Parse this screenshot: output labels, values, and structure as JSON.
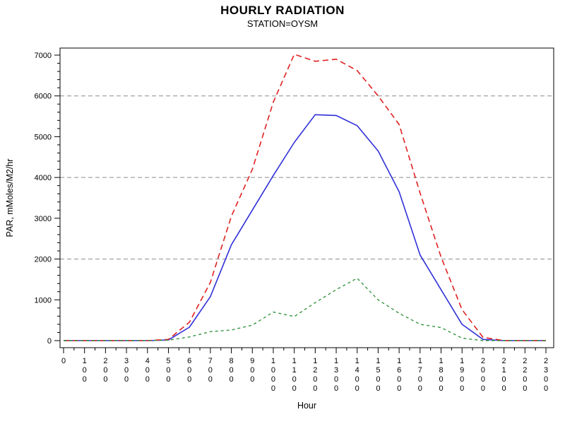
{
  "header": {
    "title": "HOURLY RADIATION",
    "subtitle": "STATION=OYSM"
  },
  "chart_data": {
    "type": "line",
    "title": "HOURLY RADIATION",
    "subtitle": "STATION=OYSM",
    "xlabel": "Hour",
    "ylabel": "PAR, mMoles/M2/hr",
    "x": [
      0,
      100,
      200,
      300,
      400,
      500,
      600,
      700,
      800,
      900,
      1000,
      1100,
      1200,
      1300,
      1400,
      1500,
      1600,
      1700,
      1800,
      1900,
      2000,
      2100,
      2200,
      2300
    ],
    "series": [
      {
        "id": "red-dashed-series",
        "color": "#e02020",
        "dash": "8 5",
        "width": 1.6,
        "values": [
          0,
          0,
          0,
          0,
          0,
          30,
          450,
          1430,
          3050,
          4200,
          5850,
          7020,
          6850,
          6900,
          6620,
          6000,
          5300,
          3620,
          2050,
          760,
          80,
          0,
          0,
          0
        ]
      },
      {
        "id": "blue-solid-series",
        "color": "#3030d8",
        "dash": "",
        "width": 1.6,
        "values": [
          0,
          0,
          0,
          0,
          0,
          15,
          330,
          1080,
          2350,
          3200,
          4050,
          4860,
          5540,
          5520,
          5270,
          4650,
          3650,
          2100,
          1250,
          400,
          30,
          0,
          0,
          0
        ]
      },
      {
        "id": "green-dashed-series",
        "color": "#35953f",
        "dash": "4 4",
        "width": 1.4,
        "values": [
          0,
          0,
          0,
          0,
          0,
          10,
          90,
          220,
          260,
          380,
          700,
          590,
          930,
          1250,
          1530,
          1000,
          670,
          400,
          320,
          60,
          0,
          0,
          0,
          0
        ]
      }
    ],
    "ylim": [
      0,
      7000
    ],
    "yticks": [
      0,
      1000,
      2000,
      3000,
      4000,
      5000,
      6000,
      7000
    ],
    "y_minor_step": 200,
    "x_major_step": 100,
    "x_minor_step": 50,
    "gridlines_y": [
      2000,
      4000,
      6000
    ],
    "grid_on": true,
    "legend_position": "none",
    "grid_color": "#8c8c8c",
    "axis_color": "#000000",
    "tick_label_size": 11,
    "axis_label_size": 12.5
  }
}
